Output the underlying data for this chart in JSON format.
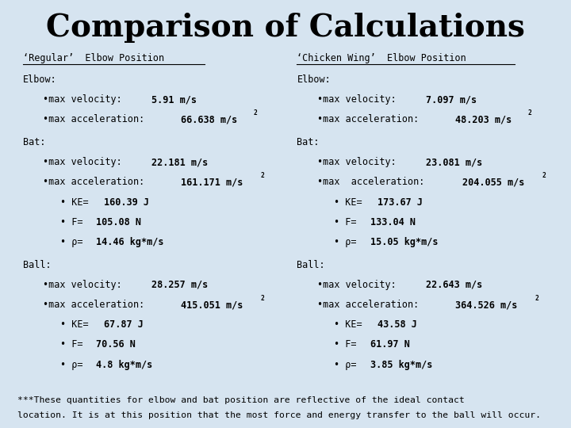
{
  "title": "Comparison of Calculations",
  "background_color": "#d6e4f0",
  "title_fontsize": 28,
  "left_column": {
    "header": "‘Regular’  Elbow Position",
    "sections": [
      {
        "label": "Elbow:",
        "indent1": [
          [
            "•max velocity: ",
            "5.91 m/s",
            ""
          ],
          [
            "•max acceleration: ",
            "66.638 m/s",
            "2"
          ]
        ],
        "indent2": []
      },
      {
        "label": "Bat:",
        "indent1": [
          [
            "•max velocity: ",
            "22.181 m/s",
            ""
          ],
          [
            "•max acceleration: ",
            "161.171 m/s",
            "2"
          ]
        ],
        "indent2": [
          [
            "• KE= ",
            "160.39 J"
          ],
          [
            "• F= ",
            "105.08 N"
          ],
          [
            "• ρ= ",
            "14.46 kg*m/s"
          ]
        ]
      },
      {
        "label": "Ball:",
        "indent1": [
          [
            "•max velocity: ",
            "28.257 m/s",
            ""
          ],
          [
            "•max acceleration: ",
            "415.051 m/s",
            "2"
          ]
        ],
        "indent2": [
          [
            "• KE= ",
            "67.87 J"
          ],
          [
            "• F= ",
            "70.56 N"
          ],
          [
            "• ρ= ",
            "4.8 kg*m/s"
          ]
        ]
      }
    ]
  },
  "right_column": {
    "header": "‘Chicken Wing’  Elbow Position",
    "sections": [
      {
        "label": "Elbow:",
        "indent1": [
          [
            "•max velocity: ",
            "7.097 m/s",
            ""
          ],
          [
            "•max acceleration: ",
            "48.203 m/s",
            "2"
          ]
        ],
        "indent2": []
      },
      {
        "label": "Bat:",
        "indent1": [
          [
            "•max velocity: ",
            "23.081 m/s",
            ""
          ],
          [
            "•max  acceleration: ",
            "204.055 m/s",
            "2"
          ]
        ],
        "indent2": [
          [
            "• KE= ",
            "173.67 J"
          ],
          [
            "• F= ",
            "133.04 N"
          ],
          [
            "• ρ= ",
            "15.05 kg*m/s"
          ]
        ]
      },
      {
        "label": "Ball:",
        "indent1": [
          [
            "•max velocity: ",
            "22.643 m/s",
            ""
          ],
          [
            "•max acceleration: ",
            "364.526 m/s",
            "2"
          ]
        ],
        "indent2": [
          [
            "• KE= ",
            "43.58 J"
          ],
          [
            "• F= ",
            "61.97 N"
          ],
          [
            "• ρ= ",
            "3.85 kg*m/s"
          ]
        ]
      }
    ]
  },
  "footnote_line1": "***These quantities for elbow and bat position are reflective of the ideal contact",
  "footnote_line2": "location. It is at this position that the most force and energy transfer to the ball will occur."
}
